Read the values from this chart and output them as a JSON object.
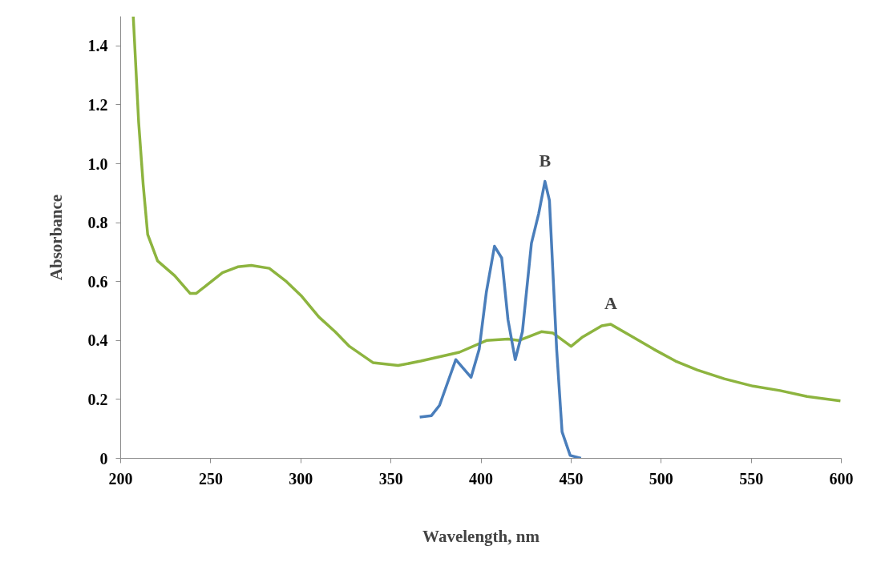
{
  "chart_data": {
    "type": "line",
    "xlabel": "Wavelength, nm",
    "ylabel": "Absorbance",
    "xlim": [
      200,
      600
    ],
    "xticks": [
      200,
      250,
      300,
      350,
      400,
      450,
      500,
      550,
      600
    ],
    "ylim": [
      0,
      1.5
    ],
    "yticks": [
      0,
      {
        "value": 0.2,
        "label": "0.2"
      },
      {
        "value": 0.4,
        "label": "0.4"
      },
      {
        "value": 0.6,
        "label": "0.6"
      },
      {
        "value": 0.8,
        "label": "0.8"
      },
      {
        "value": 1.0,
        "label": "1.0"
      },
      {
        "value": 1.2,
        "label": "1.2"
      },
      {
        "value": 1.4,
        "label": "1.4"
      }
    ],
    "grid": false,
    "marker": "none",
    "line_style": "solid",
    "series": [
      {
        "color": "#8db43f",
        "x": [
          207,
          210,
          212.5,
          215,
          220.5,
          230,
          238.5,
          242,
          256.5,
          265,
          272.5,
          282.5,
          292,
          300.5,
          310,
          319,
          327,
          340,
          354,
          366.5,
          388,
          403,
          415,
          421,
          433.5,
          440,
          450,
          456,
          467,
          472,
          482,
          496,
          508,
          520,
          535,
          551,
          566,
          581,
          599.5
        ],
        "values": [
          1.5,
          1.14,
          0.93,
          0.76,
          0.67,
          0.62,
          0.56,
          0.56,
          0.63,
          0.65,
          0.655,
          0.645,
          0.6,
          0.55,
          0.48,
          0.43,
          0.38,
          0.325,
          0.315,
          0.33,
          0.36,
          0.4,
          0.405,
          0.4,
          0.43,
          0.425,
          0.38,
          0.41,
          0.45,
          0.455,
          0.42,
          0.37,
          0.33,
          0.3,
          0.27,
          0.245,
          0.23,
          0.21,
          0.195
        ]
      },
      {
        "color": "#4a7ebb",
        "x": [
          366,
          372.5,
          377,
          386,
          394.5,
          399,
          403,
          407.5,
          411.5,
          415,
          419,
          423,
          428,
          432,
          435.5,
          438,
          442,
          445,
          449.5,
          455.5
        ],
        "values": [
          0.14,
          0.145,
          0.18,
          0.335,
          0.275,
          0.37,
          0.565,
          0.72,
          0.68,
          0.47,
          0.335,
          0.43,
          0.73,
          0.83,
          0.94,
          0.875,
          0.37,
          0.09,
          0.01,
          0.0
        ]
      }
    ],
    "annotations": [
      {
        "text": "B",
        "x": 435.5,
        "y": 0.94
      },
      {
        "text": "A",
        "x": 472,
        "y": 0.455
      }
    ]
  }
}
